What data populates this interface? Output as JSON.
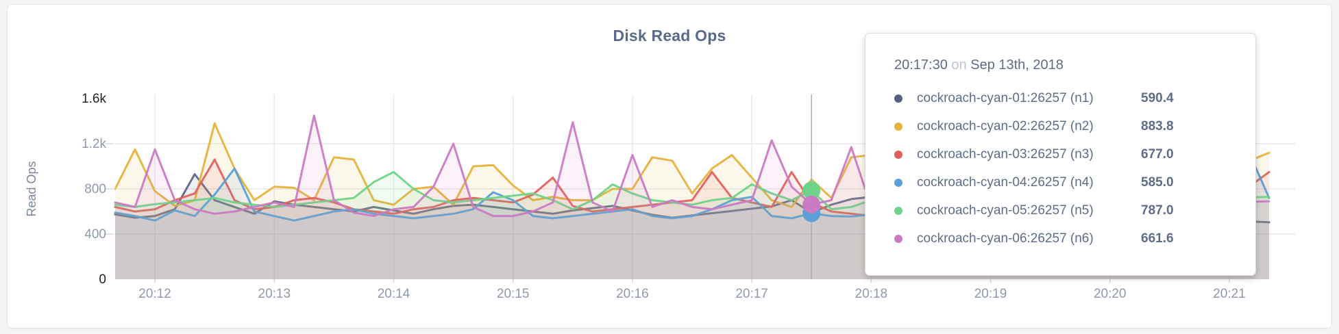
{
  "card": {
    "title": "Disk Read Ops"
  },
  "chart_data": {
    "type": "line",
    "title": "Disk Read Ops",
    "xlabel": "",
    "ylabel": "Read Ops",
    "ylim": [
      0,
      1600
    ],
    "grid": true,
    "legend_position": "tooltip-only",
    "y_ticks": [
      {
        "label": "0",
        "value": 0,
        "emphasis": true
      },
      {
        "label": "400",
        "value": 400,
        "emphasis": false
      },
      {
        "label": "800",
        "value": 800,
        "emphasis": false
      },
      {
        "label": "1.2k",
        "value": 1200,
        "emphasis": false
      },
      {
        "label": "1.6k",
        "value": 1600,
        "emphasis": true
      }
    ],
    "x_ticks": [
      {
        "label": "20:12",
        "index": 2
      },
      {
        "label": "20:13",
        "index": 8
      },
      {
        "label": "20:14",
        "index": 14
      },
      {
        "label": "20:15",
        "index": 20
      },
      {
        "label": "20:16",
        "index": 26
      },
      {
        "label": "20:17",
        "index": 32
      },
      {
        "label": "20:18",
        "index": 38
      },
      {
        "label": "20:19",
        "index": 44
      },
      {
        "label": "20:20",
        "index": 50
      },
      {
        "label": "20:21",
        "index": 56
      }
    ],
    "x_start": "20:11:40",
    "x_step_seconds": 10,
    "series": [
      {
        "name": "cockroach-cyan-01:26257 (n1)",
        "node": "n1",
        "color": "#5a6987",
        "values": [
          575,
          545,
          560,
          620,
          930,
          700,
          640,
          580,
          690,
          660,
          640,
          620,
          600,
          640,
          610,
          580,
          620,
          650,
          660,
          640,
          620,
          600,
          580,
          610,
          630,
          650,
          610,
          570,
          545,
          565,
          585,
          605,
          625,
          645,
          700,
          590.4,
          660,
          710,
          730,
          720,
          700,
          685,
          670,
          655,
          640,
          630,
          620,
          610,
          600,
          590,
          580,
          570,
          560,
          550,
          540,
          530,
          520,
          512,
          505
        ]
      },
      {
        "name": "cockroach-cyan-02:26257 (n2)",
        "node": "n2",
        "color": "#e6b33d",
        "values": [
          800,
          1150,
          780,
          650,
          700,
          1380,
          980,
          700,
          820,
          810,
          700,
          1080,
          1060,
          700,
          660,
          800,
          820,
          660,
          1000,
          1010,
          830,
          700,
          730,
          700,
          700,
          800,
          800,
          1080,
          1050,
          760,
          980,
          1100,
          900,
          700,
          640,
          883.8,
          720,
          1080,
          1100,
          900,
          750,
          820,
          1000,
          1100,
          870,
          760,
          850,
          950,
          1050,
          800,
          720,
          800,
          950,
          1050,
          900,
          750,
          1000,
          1050,
          1120
        ]
      },
      {
        "name": "cockroach-cyan-03:26257 (n3)",
        "node": "n3",
        "color": "#e2615b",
        "values": [
          640,
          600,
          620,
          700,
          760,
          1060,
          700,
          620,
          640,
          700,
          720,
          680,
          620,
          600,
          580,
          620,
          640,
          700,
          720,
          700,
          680,
          750,
          900,
          650,
          600,
          620,
          640,
          660,
          680,
          700,
          950,
          720,
          680,
          640,
          950,
          677,
          600,
          580,
          560,
          600,
          650,
          700,
          680,
          660,
          640,
          630,
          620,
          610,
          600,
          610,
          620,
          630,
          640,
          660,
          680,
          700,
          780,
          820,
          950
        ]
      },
      {
        "name": "cockroach-cyan-04:26257 (n4)",
        "node": "n4",
        "color": "#5b9fd6",
        "values": [
          590,
          560,
          520,
          610,
          560,
          750,
          980,
          600,
          560,
          520,
          560,
          600,
          620,
          580,
          560,
          540,
          560,
          580,
          620,
          770,
          700,
          560,
          540,
          560,
          580,
          600,
          620,
          560,
          540,
          560,
          620,
          700,
          730,
          560,
          540,
          585,
          560,
          555,
          575,
          595,
          615,
          635,
          655,
          675,
          690,
          700,
          690,
          675,
          660,
          640,
          620,
          600,
          580,
          560,
          540,
          560,
          700,
          1120,
          720
        ]
      },
      {
        "name": "cockroach-cyan-05:26257 (n5)",
        "node": "n5",
        "color": "#6fd389",
        "values": [
          660,
          640,
          665,
          680,
          700,
          720,
          680,
          660,
          640,
          660,
          680,
          700,
          720,
          860,
          950,
          800,
          700,
          680,
          700,
          720,
          740,
          760,
          700,
          620,
          700,
          840,
          760,
          700,
          680,
          660,
          700,
          720,
          840,
          760,
          700,
          787,
          620,
          640,
          700,
          720,
          740,
          730,
          720,
          710,
          700,
          690,
          680,
          672,
          664,
          656,
          660,
          668,
          676,
          684,
          692,
          700,
          710,
          725,
          730
        ]
      },
      {
        "name": "cockroach-cyan-06:26257 (n6)",
        "node": "n6",
        "color": "#ca7ac3",
        "values": [
          680,
          640,
          1150,
          700,
          620,
          580,
          600,
          640,
          680,
          640,
          1450,
          700,
          590,
          560,
          620,
          640,
          820,
          1200,
          640,
          560,
          560,
          600,
          680,
          1390,
          680,
          600,
          1100,
          640,
          700,
          640,
          620,
          660,
          700,
          1230,
          820,
          661.6,
          700,
          1170,
          640,
          600,
          620,
          640,
          600,
          620,
          640,
          600,
          620,
          650,
          620,
          600,
          640,
          620,
          600,
          640,
          660,
          640,
          650,
          685,
          690
        ]
      }
    ],
    "hover": {
      "index": 35,
      "time": "20:17:30",
      "dot_series_nodes": [
        "n4",
        "n5",
        "n6"
      ],
      "line_color": "#adadad"
    },
    "colors": {
      "grid": "#e9e9eb",
      "tick_dash": "#d4d7dc",
      "fill_opacity": 0.1
    }
  },
  "tooltip": {
    "time": "20:17:30",
    "conjunction": "on",
    "date": "Sep 13th, 2018",
    "rows": [
      {
        "name": "cockroach-cyan-01:26257 (n1)",
        "value": "590.4",
        "color": "#566380"
      },
      {
        "name": "cockroach-cyan-02:26257 (n2)",
        "value": "883.8",
        "color": "#e6b33d"
      },
      {
        "name": "cockroach-cyan-03:26257 (n3)",
        "value": "677.0",
        "color": "#e2605a"
      },
      {
        "name": "cockroach-cyan-04:26257 (n4)",
        "value": "585.0",
        "color": "#5b9fd6"
      },
      {
        "name": "cockroach-cyan-05:26257 (n5)",
        "value": "787.0",
        "color": "#6fd389"
      },
      {
        "name": "cockroach-cyan-06:26257 (n6)",
        "value": "661.6",
        "color": "#ca7ac3"
      }
    ]
  }
}
